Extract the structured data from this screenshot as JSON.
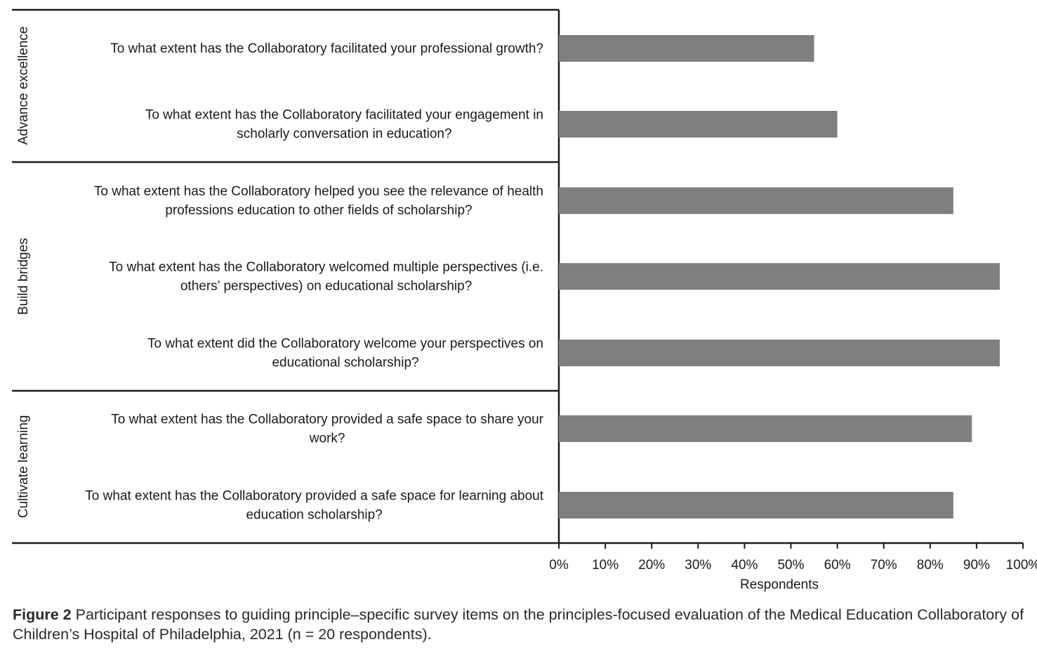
{
  "chart_data": {
    "type": "bar",
    "orientation": "horizontal",
    "xlabel": "Respondents",
    "xlim": [
      0,
      100
    ],
    "x_unit": "%",
    "x_ticks": [
      "0%",
      "10%",
      "20%",
      "30%",
      "40%",
      "50%",
      "60%",
      "70%",
      "80%",
      "90%",
      "100%"
    ],
    "bar_color": "#7f7f7f",
    "groups": [
      {
        "name": "Advance excellence",
        "items": [
          0,
          1
        ]
      },
      {
        "name": "Build bridges",
        "items": [
          2,
          3,
          4
        ]
      },
      {
        "name": "Cultivate learning",
        "items": [
          5,
          6
        ]
      }
    ],
    "categories": [
      [
        "To what extent has the Collaboratory facilitated your professional growth?"
      ],
      [
        "To what extent has the Collaboratory facilitated your engagement in",
        "scholarly conversation in education?"
      ],
      [
        "To what extent has the Collaboratory helped you see the relevance of health",
        "professions education to other fields of scholarship?"
      ],
      [
        "To what extent has the Collaboratory welcomed multiple perspectives (i.e.",
        "others’ perspectives) on educational scholarship?"
      ],
      [
        "To what extent did the Collaboratory welcome your perspectives on",
        "educational scholarship?"
      ],
      [
        "To what extent has the Collaboratory provided a safe space to share your",
        "work?"
      ],
      [
        "To what extent has the Collaboratory provided a safe space for learning about",
        "education scholarship?"
      ]
    ],
    "values": [
      55,
      60,
      85,
      95,
      95,
      89,
      85
    ]
  },
  "caption": {
    "label": "Figure 2",
    "text": " Participant responses to guiding principle–specific survey items on the principles-focused evaluation of the Medical Education Collaboratory of Children’s Hospital of Philadelphia, 2021 (n = 20 respondents)."
  }
}
